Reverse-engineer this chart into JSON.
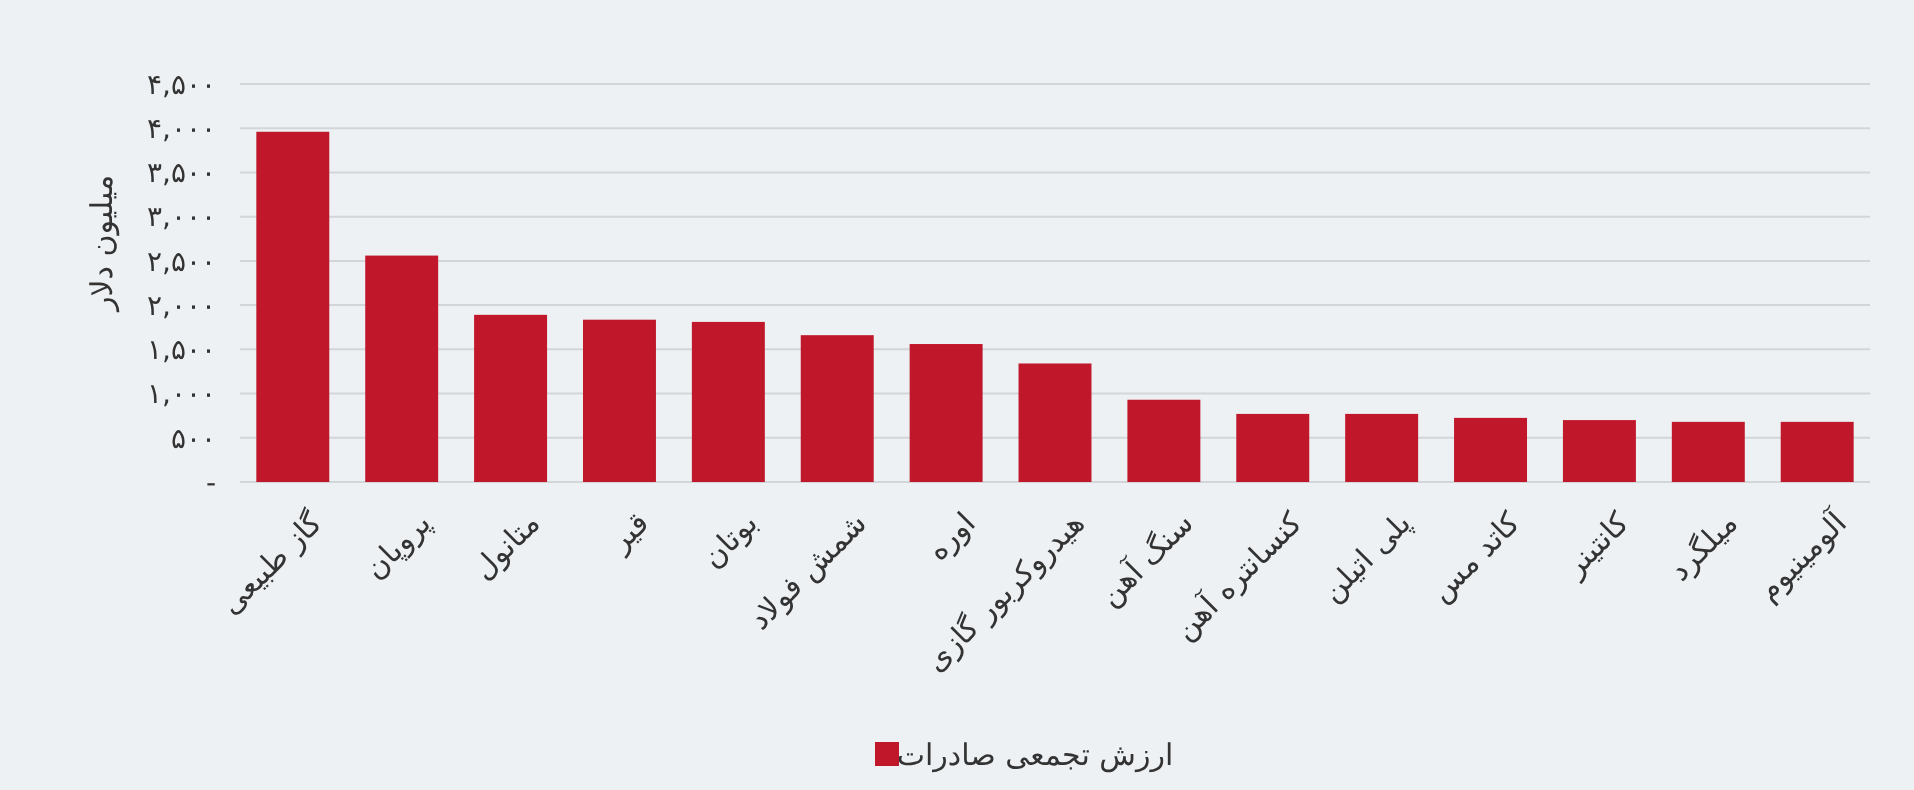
{
  "chart_data": {
    "type": "bar",
    "ylabel": "میلیون دلار",
    "categories": [
      "گاز طبیعی",
      "پروپان",
      "متانول",
      "قیر",
      "بوتان",
      "شمش فولاد",
      "اوره",
      "هیدروکربور گازی",
      "سنگ آهن",
      "کنسانتره آهن",
      "پلی اتیلن",
      "کاتد مس",
      "کانتینر",
      "میلگرد",
      "آلومینیوم"
    ],
    "series": [
      {
        "name": "ارزش تجمعی صادرات",
        "color": "#c0172a",
        "values": [
          3960,
          2560,
          1890,
          1835,
          1810,
          1660,
          1560,
          1340,
          930,
          770,
          770,
          725,
          700,
          680,
          680
        ]
      }
    ],
    "ylim": [
      0,
      4500
    ],
    "yticks": [
      {
        "value": 0,
        "label": "-"
      },
      {
        "value": 500,
        "label": "۵۰۰"
      },
      {
        "value": 1000,
        "label": "۱,۰۰۰"
      },
      {
        "value": 1500,
        "label": "۱,۵۰۰"
      },
      {
        "value": 2000,
        "label": "۲,۰۰۰"
      },
      {
        "value": 2500,
        "label": "۲,۵۰۰"
      },
      {
        "value": 3000,
        "label": "۳,۰۰۰"
      },
      {
        "value": 3500,
        "label": "۳,۵۰۰"
      },
      {
        "value": 4000,
        "label": "۴,۰۰۰"
      },
      {
        "value": 4500,
        "label": "۴,۵۰۰"
      }
    ],
    "grid": "y",
    "legend": "bottom"
  }
}
